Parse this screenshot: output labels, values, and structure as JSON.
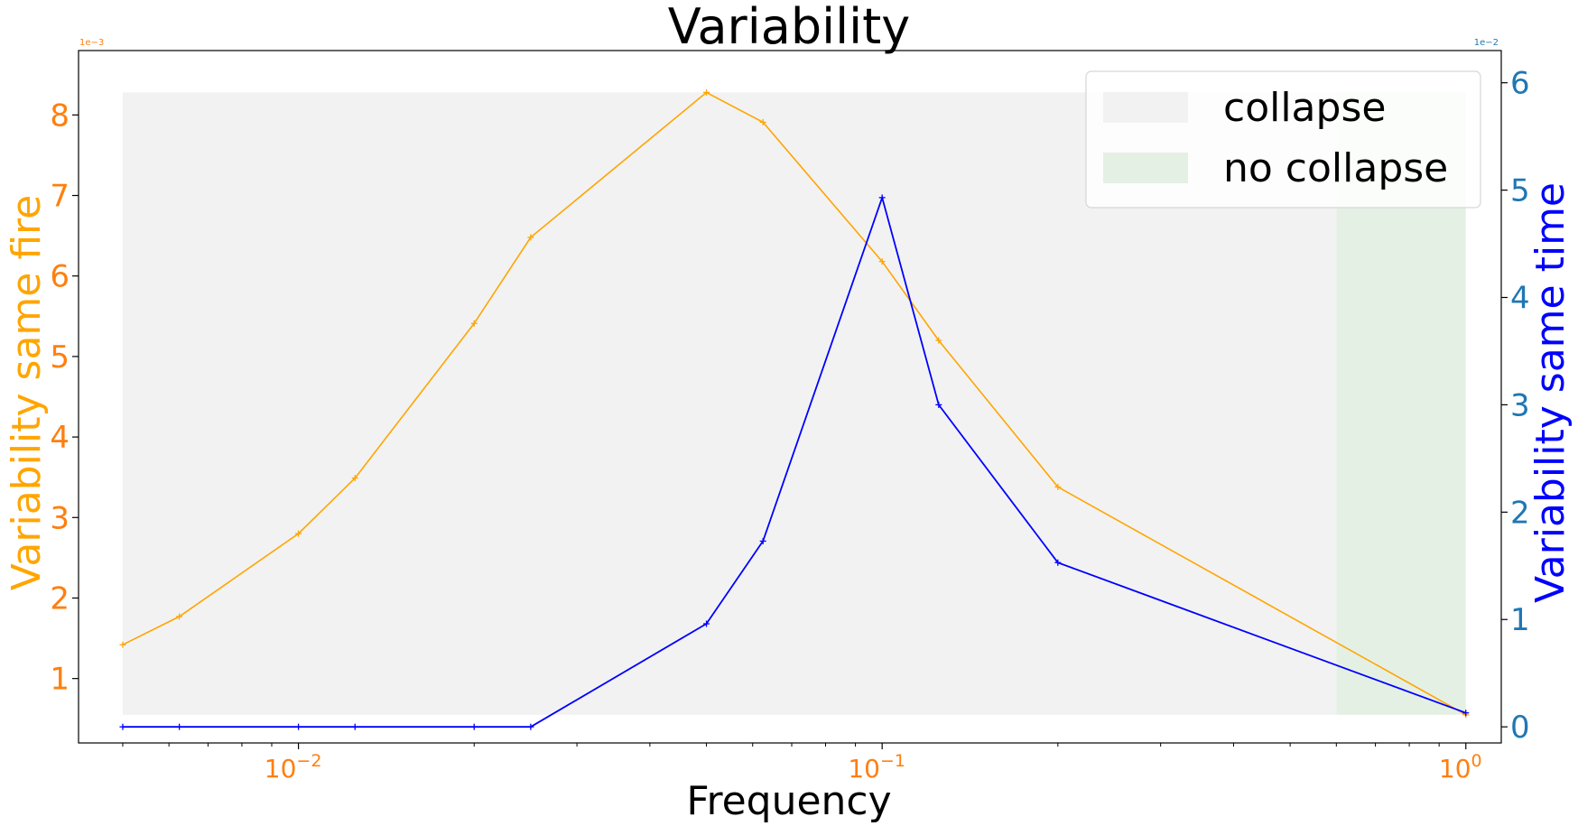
{
  "chart_data": {
    "type": "line",
    "title": "Variability",
    "xlabel": "Frequency",
    "x_scale": "log",
    "xlim": [
      0.0042,
      1.15
    ],
    "x_ticks": [
      {
        "value": 0.01,
        "base": "10",
        "exp": "−2"
      },
      {
        "value": 0.1,
        "base": "10",
        "exp": "−1"
      },
      {
        "value": 1,
        "base": "10",
        "exp": "0"
      }
    ],
    "y_left": {
      "label": "Variability same fire",
      "offset_text": "1e−3",
      "multiplier": 0.001,
      "ylim": [
        0.2,
        8.8
      ],
      "ticks": [
        1,
        2,
        3,
        4,
        5,
        6,
        7,
        8
      ],
      "color": "#ffa500",
      "tick_color": "#ff7f0e"
    },
    "y_right": {
      "label": "Variability same time",
      "offset_text": "1e−2",
      "multiplier": 0.01,
      "ylim": [
        -0.15,
        6.3
      ],
      "ticks": [
        0,
        1,
        2,
        3,
        4,
        5,
        6
      ],
      "color": "#0000ff",
      "tick_color": "#1f77b4"
    },
    "regions": [
      {
        "name": "collapse",
        "x_start": 0.005,
        "x_end": 0.6,
        "y_left_range": [
          0.55,
          8.28
        ],
        "color": "#f2f2f2"
      },
      {
        "name": "no collapse",
        "x_start": 0.6,
        "x_end": 1.0,
        "y_left_range": [
          0.55,
          8.28
        ],
        "color": "#e5f0e5"
      }
    ],
    "series": [
      {
        "name": "Variability same fire",
        "axis": "left",
        "color": "#ffa500",
        "x": [
          0.005,
          0.00625,
          0.01,
          0.0125,
          0.02,
          0.025,
          0.05,
          0.0625,
          0.1,
          0.125,
          0.2,
          1.0
        ],
        "values": [
          1.42,
          1.77,
          2.8,
          3.49,
          5.41,
          6.48,
          8.28,
          7.91,
          6.18,
          5.2,
          3.38,
          0.55
        ]
      },
      {
        "name": "Variability same time",
        "axis": "right",
        "color": "#0000ff",
        "x": [
          0.005,
          0.00625,
          0.01,
          0.0125,
          0.02,
          0.025,
          0.05,
          0.0625,
          0.1,
          0.125,
          0.2,
          1.0
        ],
        "values": [
          0.0,
          0.0,
          0.0,
          0.0,
          0.0,
          0.0,
          0.96,
          1.73,
          4.93,
          3.0,
          1.53,
          0.13
        ]
      }
    ],
    "legend": {
      "position": "top-right",
      "entries": [
        {
          "label": "collapse",
          "color": "#f2f2f2"
        },
        {
          "label": "no collapse",
          "color": "#e5f0e5"
        }
      ]
    }
  }
}
